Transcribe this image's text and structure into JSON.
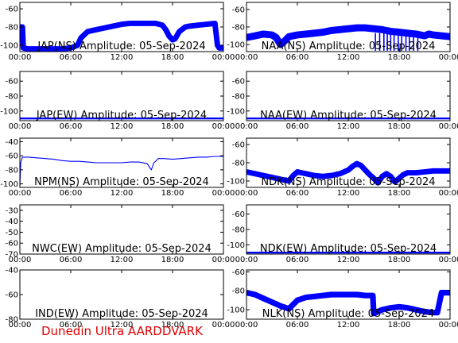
{
  "footer": "Dunedin Ultra AARDDVARK",
  "colors": {
    "trace": "#0000ff",
    "footer": "#e00000",
    "axis": "#000000"
  },
  "x_tick_labels": [
    "00:00",
    "06:00",
    "12:00",
    "18:00",
    "00:00"
  ],
  "chart_data": [
    {
      "type": "line",
      "id": "jap-ns",
      "title": "JAP(NS) Amplitude: 05-Sep-2024",
      "xlim": [
        0,
        24
      ],
      "ylim": [
        -107,
        -53
      ],
      "yticks": [
        -100,
        -80,
        -60
      ],
      "series": [
        {
          "x": [
            0,
            0.3,
            0.4,
            1,
            3,
            5,
            6,
            6.8,
            7.2,
            8,
            9,
            10,
            11,
            12,
            13,
            14,
            15,
            16,
            16.8,
            17.2,
            17.6,
            18,
            18.3,
            18.8,
            19.5,
            20,
            21,
            22,
            23,
            23.3,
            23.5,
            23.7,
            24
          ],
          "y": [
            -80,
            -80,
            -103,
            -104,
            -104,
            -104,
            -103,
            -100,
            -92,
            -85,
            -83,
            -81,
            -79,
            -77,
            -76,
            -76,
            -76,
            -76,
            -78,
            -83,
            -90,
            -94,
            -93,
            -85,
            -80,
            -79,
            -78,
            -77,
            -76,
            -100,
            -103,
            -103,
            -103
          ],
          "band": 3
        }
      ]
    },
    {
      "type": "line",
      "id": "naa-ns",
      "title": "NAA(NS) Amplitude: 05-Sep-2024",
      "xlim": [
        0,
        24
      ],
      "ylim": [
        -108,
        -52
      ],
      "yticks": [
        -100,
        -80,
        -60
      ],
      "series": [
        {
          "x": [
            0,
            1,
            2,
            3,
            3.5,
            4,
            4.5,
            5,
            6,
            7,
            8,
            9,
            10,
            11,
            12,
            13,
            14,
            15,
            16,
            17,
            18,
            19,
            20,
            21,
            21.5,
            22,
            23,
            24
          ],
          "y": [
            -92,
            -90,
            -88,
            -89,
            -92,
            -100,
            -96,
            -91,
            -89,
            -88,
            -87,
            -86,
            -84,
            -83,
            -82,
            -81,
            -81,
            -82,
            -83,
            -85,
            -86,
            -87,
            -88,
            -90,
            -88,
            -89,
            -90,
            -91
          ],
          "band": 4,
          "spikes": [
            15.2,
            15.7,
            16.2,
            16.6,
            17.0,
            17.4,
            17.9,
            18.3,
            18.8,
            19.2,
            19.7,
            20.2
          ]
        }
      ]
    },
    {
      "type": "line",
      "id": "jap-ew",
      "title": "JAP(EW) Amplitude: 05-Sep-2024",
      "xlim": [
        0,
        24
      ],
      "ylim": [
        -113,
        -47
      ],
      "yticks": [
        -100,
        -80,
        -60
      ],
      "series": [
        {
          "x": [
            0,
            24
          ],
          "y": [
            -110,
            -110
          ],
          "band": 1.2
        }
      ]
    },
    {
      "type": "line",
      "id": "naa-ew",
      "title": "NAA(EW) Amplitude: 05-Sep-2024",
      "xlim": [
        0,
        24
      ],
      "ylim": [
        -113,
        -47
      ],
      "yticks": [
        -100,
        -80,
        -60
      ],
      "series": [
        {
          "x": [
            0,
            24
          ],
          "y": [
            -110,
            -110
          ],
          "band": 1.2
        }
      ]
    },
    {
      "type": "line",
      "id": "npm-ns",
      "title": "NPM(NS) Amplitude: 05-Sep-2024",
      "xlim": [
        0,
        24
      ],
      "ylim": [
        -105,
        -35
      ],
      "yticks": [
        -100,
        -80,
        -60,
        -40
      ],
      "series": [
        {
          "x": [
            0,
            0.1,
            0.3,
            1,
            2,
            3,
            4,
            5,
            6,
            7,
            8,
            9,
            10,
            11,
            12,
            13,
            14,
            15,
            15.5,
            15.8,
            16,
            16.3,
            16.6,
            17,
            18,
            19,
            20,
            21,
            22,
            23,
            24
          ],
          "y": [
            -103,
            -70,
            -62,
            -62,
            -63,
            -64,
            -65,
            -67,
            -68,
            -68,
            -69,
            -70,
            -70,
            -70,
            -70,
            -69,
            -69,
            -71,
            -80,
            -70,
            -68,
            -64,
            -64,
            -64,
            -65,
            -64,
            -63,
            -62,
            -62,
            -61,
            -61
          ],
          "band": 0.6
        }
      ]
    },
    {
      "type": "line",
      "id": "ndk-ns",
      "title": "NDK(NS) Amplitude: 05-Sep-2024",
      "xlim": [
        0,
        24
      ],
      "ylim": [
        -107,
        -53
      ],
      "yticks": [
        -100,
        -80,
        -60
      ],
      "series": [
        {
          "x": [
            0,
            1,
            2,
            3,
            4,
            5,
            5.5,
            6,
            7,
            8,
            9,
            10,
            11,
            12,
            12.5,
            13,
            13.5,
            14,
            14.5,
            15,
            15.5,
            16,
            16.5,
            17,
            17.5,
            18,
            18.5,
            19,
            20,
            21,
            22,
            23,
            24
          ],
          "y": [
            -90,
            -92,
            -94,
            -96,
            -98,
            -100,
            -94,
            -90,
            -92,
            -94,
            -95,
            -94,
            -92,
            -88,
            -84,
            -81,
            -83,
            -88,
            -93,
            -97,
            -102,
            -95,
            -92,
            -95,
            -101,
            -97,
            -93,
            -91,
            -91,
            -90,
            -89,
            -89,
            -89
          ],
          "band": 3
        }
      ]
    },
    {
      "type": "line",
      "id": "nwc-ew",
      "title": "NWC(EW) Amplitude: 05-Sep-2024",
      "xlim": [
        0,
        24
      ],
      "ylim": [
        -70,
        -25
      ],
      "yticks": [
        -70,
        -60,
        -50,
        -40,
        -30
      ],
      "series": []
    },
    {
      "type": "line",
      "id": "ndk-ew",
      "title": "NDK(EW) Amplitude: 05-Sep-2024",
      "xlim": [
        0,
        24
      ],
      "ylim": [
        -112,
        -48
      ],
      "yticks": [
        -100,
        -80,
        -60
      ],
      "series": [
        {
          "x": [
            0,
            24
          ],
          "y": [
            -110,
            -110
          ],
          "band": 1.2
        }
      ]
    },
    {
      "type": "line",
      "id": "ind-ew",
      "title": "IND(EW) Amplitude: 05-Sep-2024",
      "xlim": [
        0,
        24
      ],
      "ylim": [
        -80,
        -40
      ],
      "yticks": [
        -80,
        -60,
        -40
      ],
      "series": []
    },
    {
      "type": "line",
      "id": "nlk-ns",
      "title": "NLK(NS) Amplitude: 05-Sep-2024",
      "xlim": [
        0,
        24
      ],
      "ylim": [
        -110,
        -58
      ],
      "yticks": [
        -100,
        -80,
        -60
      ],
      "series": [
        {
          "x": [
            0,
            1,
            2,
            3,
            4,
            5,
            6,
            7,
            8,
            9,
            10,
            11,
            12,
            13,
            14,
            14.9,
            15,
            16,
            17,
            18,
            19,
            20,
            21,
            22,
            22.5,
            23,
            23.5,
            24
          ],
          "y": [
            -82,
            -84,
            -88,
            -92,
            -96,
            -99,
            -90,
            -87,
            -86,
            -85,
            -84,
            -84,
            -84,
            -84,
            -85,
            -85,
            -104,
            -100,
            -98,
            -97,
            -98,
            -100,
            -102,
            -103,
            -103,
            -82,
            -82,
            -82
          ],
          "band": 3
        }
      ]
    }
  ]
}
